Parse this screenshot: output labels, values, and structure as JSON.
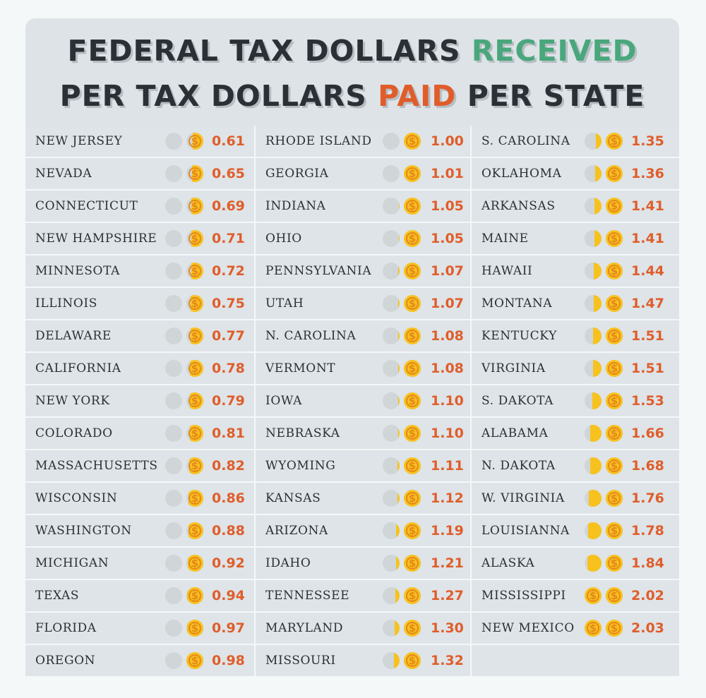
{
  "title": {
    "line1_prefix": "FEDERAL TAX DOLLARS ",
    "line1_highlight": "RECEIVED",
    "line2_prefix": "PER TAX DOLLARS ",
    "line2_highlight": "PAID",
    "line2_suffix": " PER STATE"
  },
  "colors": {
    "received_accent": "#4aa77c",
    "paid_accent": "#e05d2b",
    "coin": "#f7c21e",
    "title_text": "#2b3036"
  },
  "icons": {
    "coin": "dollar-coin-icon"
  },
  "chart_data": {
    "type": "table",
    "columns": [
      [
        {
          "state": "NEW JERSEY",
          "value": 0.61
        },
        {
          "state": "NEVADA",
          "value": 0.65
        },
        {
          "state": "CONNECTICUT",
          "value": 0.69
        },
        {
          "state": "NEW HAMPSHIRE",
          "value": 0.71
        },
        {
          "state": "MINNESOTA",
          "value": 0.72
        },
        {
          "state": "ILLINOIS",
          "value": 0.75
        },
        {
          "state": "DELAWARE",
          "value": 0.77
        },
        {
          "state": "CALIFORNIA",
          "value": 0.78
        },
        {
          "state": "NEW YORK",
          "value": 0.79
        },
        {
          "state": "COLORADO",
          "value": 0.81
        },
        {
          "state": "MASSACHUSETTS",
          "value": 0.82
        },
        {
          "state": "WISCONSIN",
          "value": 0.86
        },
        {
          "state": "WASHINGTON",
          "value": 0.88
        },
        {
          "state": "MICHIGAN",
          "value": 0.92
        },
        {
          "state": "TEXAS",
          "value": 0.94
        },
        {
          "state": "FLORIDA",
          "value": 0.97
        },
        {
          "state": "OREGON",
          "value": 0.98
        }
      ],
      [
        {
          "state": "RHODE ISLAND",
          "value": 1.0
        },
        {
          "state": "GEORGIA",
          "value": 1.01
        },
        {
          "state": "INDIANA",
          "value": 1.05
        },
        {
          "state": "OHIO",
          "value": 1.05
        },
        {
          "state": "PENNSYLVANIA",
          "value": 1.07
        },
        {
          "state": "UTAH",
          "value": 1.07
        },
        {
          "state": "N. CAROLINA",
          "value": 1.08
        },
        {
          "state": "VERMONT",
          "value": 1.08
        },
        {
          "state": "IOWA",
          "value": 1.1
        },
        {
          "state": "NEBRASKA",
          "value": 1.1
        },
        {
          "state": "WYOMING",
          "value": 1.11
        },
        {
          "state": "KANSAS",
          "value": 1.12
        },
        {
          "state": "ARIZONA",
          "value": 1.19
        },
        {
          "state": "IDAHO",
          "value": 1.21
        },
        {
          "state": "TENNESSEE",
          "value": 1.27
        },
        {
          "state": "MARYLAND",
          "value": 1.3
        },
        {
          "state": "MISSOURI",
          "value": 1.32
        }
      ],
      [
        {
          "state": "S. CAROLINA",
          "value": 1.35
        },
        {
          "state": "OKLAHOMA",
          "value": 1.36
        },
        {
          "state": "ARKANSAS",
          "value": 1.41
        },
        {
          "state": "MAINE",
          "value": 1.41
        },
        {
          "state": "HAWAII",
          "value": 1.44
        },
        {
          "state": "MONTANA",
          "value": 1.47
        },
        {
          "state": "KENTUCKY",
          "value": 1.51
        },
        {
          "state": "VIRGINIA",
          "value": 1.51
        },
        {
          "state": "S. DAKOTA",
          "value": 1.53
        },
        {
          "state": "ALABAMA",
          "value": 1.66
        },
        {
          "state": "N. DAKOTA",
          "value": 1.68
        },
        {
          "state": "W. VIRGINIA",
          "value": 1.76
        },
        {
          "state": "LOUISIANNA",
          "value": 1.78
        },
        {
          "state": "ALASKA",
          "value": 1.84
        },
        {
          "state": "MISSISSIPPI",
          "value": 2.02
        },
        {
          "state": "NEW MEXICO",
          "value": 2.03
        }
      ]
    ]
  }
}
